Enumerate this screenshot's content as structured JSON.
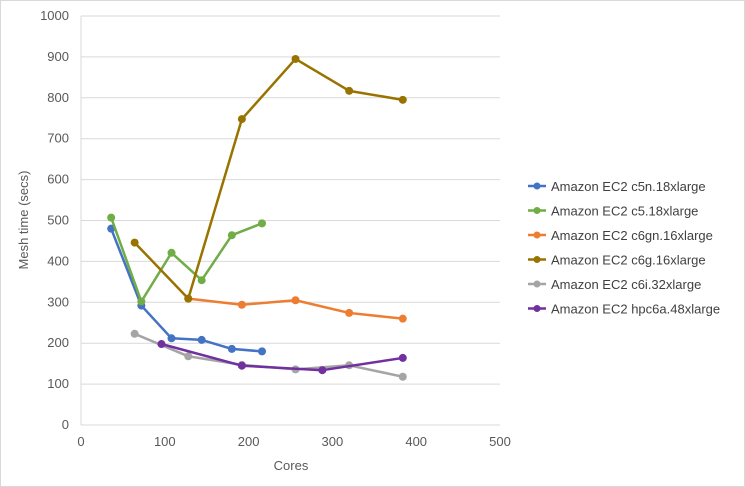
{
  "chart_data": {
    "type": "line",
    "title": "",
    "xlabel": "Cores",
    "ylabel": "Mesh time (secs)",
    "xlim": [
      0,
      500
    ],
    "ylim": [
      0,
      1000
    ],
    "xticks": [
      0,
      100,
      200,
      300,
      400,
      500
    ],
    "yticks": [
      0,
      100,
      200,
      300,
      400,
      500,
      600,
      700,
      800,
      900,
      1000
    ],
    "grid": "horizontal",
    "legend": "right",
    "series": [
      {
        "name": "Amazon EC2 c5n.18xlarge",
        "color": "#4472C4",
        "x": [
          36,
          72,
          108,
          144,
          180,
          216
        ],
        "y": [
          480,
          292,
          212,
          208,
          186,
          180
        ]
      },
      {
        "name": "Amazon EC2 c5.18xlarge",
        "color": "#70AD47",
        "x": [
          36,
          72,
          108,
          144,
          180,
          216
        ],
        "y": [
          507,
          302,
          421,
          354,
          464,
          493
        ]
      },
      {
        "name": "Amazon EC2 c6gn.16xlarge",
        "color": "#ED7D31",
        "x": [
          128,
          192,
          256,
          320,
          384
        ],
        "y": [
          309,
          294,
          305,
          274,
          260
        ]
      },
      {
        "name": "Amazon EC2 c6g.16xlarge",
        "color": "#997300",
        "x": [
          64,
          128,
          192,
          256,
          320,
          384
        ],
        "y": [
          446,
          309,
          748,
          895,
          817,
          795
        ]
      },
      {
        "name": "Amazon EC2 c6i.32xlarge",
        "color": "#A5A5A5",
        "x": [
          64,
          128,
          192,
          256,
          320,
          384
        ],
        "y": [
          223,
          168,
          147,
          136,
          146,
          118
        ]
      },
      {
        "name": "Amazon EC2 hpc6a.48xlarge",
        "color": "#7030A0",
        "x": [
          96,
          192,
          288,
          384
        ],
        "y": [
          198,
          145,
          134,
          164
        ]
      }
    ]
  }
}
